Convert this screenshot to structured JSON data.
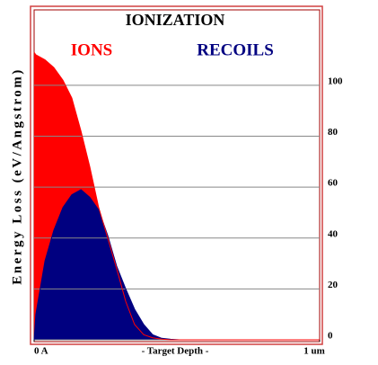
{
  "chart_data": {
    "type": "area",
    "title": "IONIZATION",
    "x_label": "- Target Depth -",
    "y_label": "Energy Loss (eV/Angstrom)",
    "x": [
      0,
      60,
      380,
      690,
      1010,
      1320,
      1640,
      1950,
      2260,
      2580,
      2890,
      3210,
      3520,
      3840,
      4150,
      4470,
      4780,
      5090,
      10000
    ],
    "series": [
      {
        "name": "IONS",
        "color": "#ff0000",
        "values": [
          113,
          112,
          110,
          107,
          102,
          95,
          82,
          68,
          52,
          40,
          28,
          15,
          6,
          2,
          0.8,
          0.3,
          0,
          0,
          0
        ]
      },
      {
        "name": "RECOILS",
        "color": "#000080",
        "values": [
          0,
          10,
          31,
          43,
          52,
          57,
          59,
          56,
          51,
          41,
          29,
          20,
          12,
          6,
          2,
          0.6,
          0.2,
          0,
          0
        ]
      }
    ],
    "xlim": [
      0,
      10000
    ],
    "xticks": [
      {
        "value": 0,
        "label": "0 A"
      },
      {
        "value": 10000,
        "label": "1 um"
      }
    ],
    "ylim": [
      0,
      130
    ],
    "yticks": [
      0,
      20,
      40,
      60,
      80,
      100
    ],
    "grid": true
  }
}
